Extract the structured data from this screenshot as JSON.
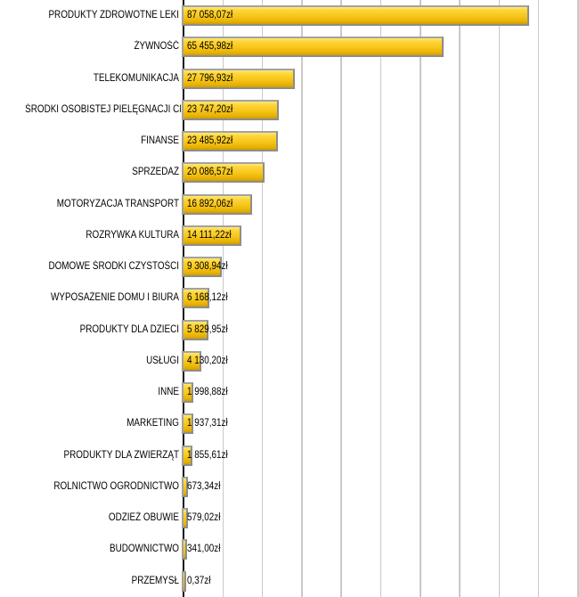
{
  "chart_data": {
    "type": "bar",
    "orientation": "horizontal",
    "title": "",
    "xlabel": "",
    "ylabel": "",
    "unit": "zł",
    "xlim": [
      0,
      100000
    ],
    "gridline_interval": 10000,
    "grid": "vertical-on",
    "legend": "none",
    "categories": [
      "PRODUKTY ZDROWOTNE LEKI",
      "ŻYWNOŚĆ",
      "TELEKOMUNIKACJA",
      "ŚRODKI OSOBISTEJ PIELĘGNACJI CIAŁA",
      "FINANSE",
      "SPRZEDAŻ",
      "MOTORYZACJA TRANSPORT",
      "ROZRYWKA KULTURA",
      "DOMOWE ŚRODKI CZYSTOŚCI",
      "WYPOSAŻENIE DOMU I BIURA",
      "PRODUKTY DLA DZIECI",
      "USŁUGI",
      "INNE",
      "MARKETING",
      "PRODUKTY DLA ZWIERZĄT",
      "ROLNICTWO OGRODNICTWO",
      "ODZIEŻ OBUWIE",
      "BUDOWNICTWO",
      "PRZEMYSŁ"
    ],
    "values": [
      87058.07,
      65455.98,
      27796.93,
      23747.2,
      23485.92,
      20086.57,
      16892.06,
      14111.22,
      9308.94,
      6168.12,
      5829.95,
      4130.2,
      1998.88,
      1937.31,
      1855.61,
      673.34,
      579.02,
      341.0,
      0.37
    ],
    "value_labels": [
      "87 058,07zł",
      "65 455,98zł",
      "27 796,93zł",
      "23 747,20zł",
      "23 485,92zł",
      "20 086,57zł",
      "16 892,06zł",
      "14 111,22zł",
      "9 308,94zł",
      "6 168,12zł",
      "5 829,95zł",
      "4 130,20zł",
      "1 998,88zł",
      "1 937,31zł",
      "1 855,61zł",
      "673,34zł",
      "579,02zł",
      "341,00zł",
      "0,37zł"
    ],
    "colors": {
      "bar_fill_top": "#ffe87a",
      "bar_fill_mid": "#f6c51a",
      "bar_fill_bottom": "#cf9d00",
      "bar_border": "#a2a2a2",
      "gridline": "#c9c9c9",
      "axis": "#111111",
      "text": "#000000",
      "background": "#ffffff"
    }
  }
}
